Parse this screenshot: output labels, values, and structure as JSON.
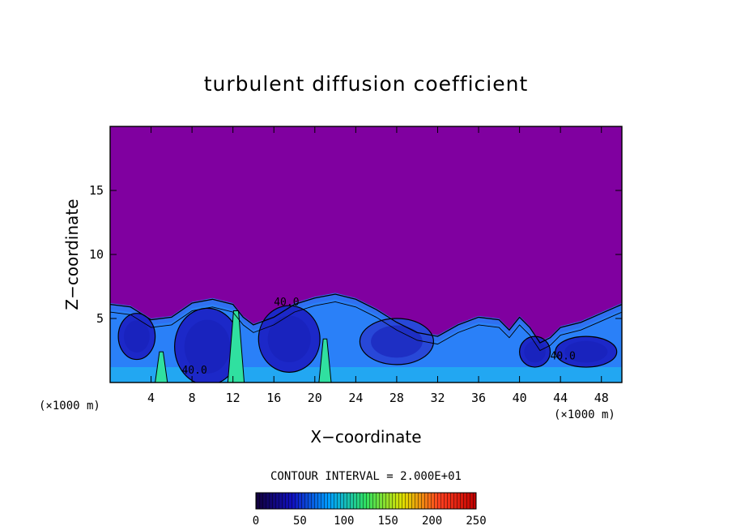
{
  "chart_data": {
    "type": "heatmap",
    "title": "turbulent diffusion coefficient",
    "xlabel": "X−coordinate",
    "ylabel": "Z−coordinate",
    "x_unit": "(×1000 m)",
    "y_unit": "(×1000 m)",
    "xlim": [
      0,
      50
    ],
    "ylim": [
      0,
      20
    ],
    "x_ticks": [
      4,
      8,
      12,
      16,
      20,
      24,
      28,
      32,
      36,
      40,
      44,
      48
    ],
    "y_ticks": [
      5,
      10,
      15
    ],
    "contour_interval": "CONTOUR INTERVAL = 2.000E+01",
    "contour_labels": [
      {
        "text": "40.0",
        "x": 16.0,
        "z": 6.0
      },
      {
        "text": "40.0",
        "x": 7.0,
        "z": 0.7
      },
      {
        "text": "40.0",
        "x": 43.0,
        "z": 1.8
      }
    ],
    "colorbar": {
      "ticks": [
        "0",
        "50",
        "100",
        "150",
        "200",
        "250"
      ],
      "range": [
        0,
        250
      ],
      "colors": [
        "#12003a",
        "#1010c0",
        "#00a0ff",
        "#30e060",
        "#e0e000",
        "#ff4020",
        "#c00000"
      ]
    },
    "background_value_color": "#8000a0",
    "turbulent_layer_top": [
      [
        0,
        6.2
      ],
      [
        2,
        6.0
      ],
      [
        4,
        5.0
      ],
      [
        6,
        5.2
      ],
      [
        8,
        6.3
      ],
      [
        10,
        6.6
      ],
      [
        12,
        6.2
      ],
      [
        13,
        5.2
      ],
      [
        14,
        4.6
      ],
      [
        16,
        5.2
      ],
      [
        18,
        6.2
      ],
      [
        20,
        6.7
      ],
      [
        22,
        7.0
      ],
      [
        24,
        6.6
      ],
      [
        26,
        5.8
      ],
      [
        28,
        4.8
      ],
      [
        30,
        4.0
      ],
      [
        32,
        3.7
      ],
      [
        34,
        4.6
      ],
      [
        36,
        5.2
      ],
      [
        38,
        5.0
      ],
      [
        39,
        4.2
      ],
      [
        40,
        5.2
      ],
      [
        41,
        4.4
      ],
      [
        42,
        3.2
      ],
      [
        43,
        3.6
      ],
      [
        44,
        4.4
      ],
      [
        46,
        4.8
      ],
      [
        48,
        5.5
      ],
      [
        50,
        6.2
      ]
    ],
    "eddies": [
      {
        "x": 9.5,
        "z": 2.8,
        "rx": 3.2,
        "rz": 3.0,
        "shade": "dark"
      },
      {
        "x": 17.5,
        "z": 3.4,
        "rx": 3.0,
        "rz": 2.6,
        "shade": "dark"
      },
      {
        "x": 2.6,
        "z": 3.6,
        "rx": 1.8,
        "rz": 1.8,
        "shade": "dark"
      },
      {
        "x": 41.5,
        "z": 2.4,
        "rx": 1.5,
        "rz": 1.2,
        "shade": "dark"
      },
      {
        "x": 28.0,
        "z": 3.2,
        "rx": 3.6,
        "rz": 1.8,
        "shade": "mid"
      },
      {
        "x": 46.5,
        "z": 2.4,
        "rx": 3.0,
        "rz": 1.2,
        "shade": "dark"
      }
    ],
    "plumes": [
      {
        "x": 12.3,
        "top": 5.6,
        "width": 0.8
      },
      {
        "x": 21.0,
        "top": 3.4,
        "width": 0.6
      },
      {
        "x": 5.0,
        "top": 2.4,
        "width": 0.6
      }
    ]
  }
}
